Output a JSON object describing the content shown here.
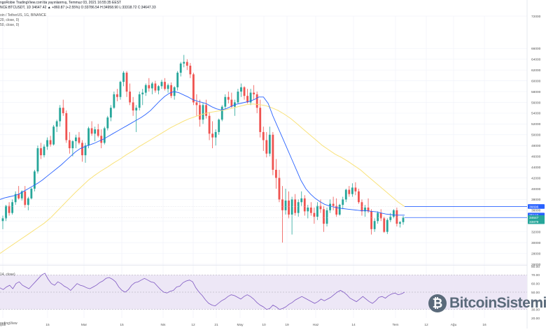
{
  "header": {
    "line1": "ngoRobie TradingView.com'da yayınlanmış, Temmuz 03, 2021 16:55:35 EEST",
    "line2": "NCE:BTCUSDT, 1D 34647.42 ▲ +860.87 (+2.55%) O:33786.54 H:34958.90 L:33318.72 C:34647.33",
    "line3": "oin / TetherUS, 1G, BINANCE",
    "line4": "20, close, 0)",
    "line5": "50, close, 0)"
  },
  "rsi_label": "14, close)",
  "footer": "radingView",
  "watermark": {
    "icon": "bitcoin-sistemi-logo-icon",
    "text": "BitcoinSistemi"
  },
  "colors": {
    "up": "#26a69a",
    "down": "#ef5350",
    "ma20": "#2962ff",
    "ma50": "#f9e27a",
    "rsi_line": "#7e57c2",
    "rsi_band": "#ede7f6",
    "badge_blue": "#2962ff",
    "badge_green": "#26a69a"
  },
  "chart_data": [
    {
      "type": "candlestick",
      "title": "BTCUSDT 1D",
      "x_ticks": [
        "Şub",
        "15",
        "Mar",
        "15",
        "Nis",
        "12",
        "21",
        "May",
        "10",
        "19",
        "Haz",
        "14",
        "Tem",
        "12",
        "Ağu",
        "16"
      ],
      "y_ticks": [
        "72000",
        "66000",
        "64000",
        "62000",
        "60000",
        "58000",
        "56000",
        "54000",
        "52000",
        "50000",
        "48000",
        "46000",
        "44000",
        "42000",
        "40000",
        "38000",
        "36000",
        "34000",
        "32000",
        "30000",
        "28000",
        "26000"
      ],
      "ylim": [
        26000,
        72000
      ],
      "price_badges": [
        "36696",
        "35118",
        "34647",
        "33879"
      ],
      "candles": [
        [
          34000,
          35000,
          32500,
          34500
        ],
        [
          34500,
          37000,
          34000,
          36800
        ],
        [
          36800,
          37500,
          35000,
          35500
        ],
        [
          35500,
          38000,
          35200,
          37500
        ],
        [
          37500,
          39500,
          37000,
          39000
        ],
        [
          39000,
          40500,
          38000,
          38200
        ],
        [
          38200,
          39700,
          37800,
          39500
        ],
        [
          39500,
          40500,
          36500,
          37000
        ],
        [
          37000,
          38500,
          36000,
          38200
        ],
        [
          38200,
          40200,
          38000,
          40000
        ],
        [
          40000,
          43500,
          39500,
          43200
        ],
        [
          43200,
          48000,
          42800,
          47500
        ],
        [
          47500,
          48500,
          45500,
          46200
        ],
        [
          46200,
          48200,
          45800,
          47800
        ],
        [
          47800,
          49500,
          47200,
          49000
        ],
        [
          49000,
          49800,
          47800,
          48200
        ],
        [
          48200,
          51800,
          48000,
          51500
        ],
        [
          51500,
          52800,
          50500,
          52500
        ],
        [
          52500,
          55500,
          51500,
          55000
        ],
        [
          55000,
          56500,
          53500,
          54000
        ],
        [
          54000,
          54500,
          48500,
          49000
        ],
        [
          49000,
          50500,
          46500,
          47500
        ],
        [
          47500,
          49000,
          46000,
          48800
        ],
        [
          48800,
          50000,
          47500,
          49500
        ],
        [
          49500,
          50500,
          48200,
          48500
        ],
        [
          48500,
          49000,
          45000,
          46200
        ],
        [
          46200,
          48500,
          44800,
          48000
        ],
        [
          48000,
          51500,
          47500,
          51200
        ],
        [
          51200,
          52500,
          49800,
          50200
        ],
        [
          50200,
          51500,
          48800,
          51000
        ],
        [
          51000,
          52000,
          49500,
          49800
        ],
        [
          49800,
          51000,
          47500,
          48500
        ],
        [
          48500,
          51500,
          48200,
          51200
        ],
        [
          51200,
          53500,
          50800,
          53200
        ],
        [
          53200,
          55500,
          52500,
          55000
        ],
        [
          55000,
          58000,
          54800,
          57500
        ],
        [
          57500,
          58500,
          56200,
          57000
        ],
        [
          57000,
          60000,
          56500,
          59800
        ],
        [
          59800,
          61800,
          59000,
          61500
        ],
        [
          61500,
          61800,
          57000,
          58000
        ],
        [
          58000,
          59500,
          55500,
          56000
        ],
        [
          56000,
          57000,
          53500,
          54500
        ],
        [
          54500,
          55500,
          50500,
          55000
        ],
        [
          55000,
          58000,
          54500,
          57500
        ],
        [
          57500,
          58500,
          55500,
          57800
        ],
        [
          57800,
          59500,
          57200,
          59200
        ],
        [
          59200,
          60500,
          58000,
          58600
        ],
        [
          58600,
          59800,
          57500,
          59500
        ],
        [
          59500,
          60000,
          57800,
          58200
        ],
        [
          58200,
          59200,
          57500,
          59000
        ],
        [
          59000,
          60200,
          58500,
          59800
        ],
        [
          59800,
          60500,
          58200,
          58500
        ],
        [
          58500,
          59500,
          57800,
          59200
        ],
        [
          59200,
          59700,
          56800,
          57200
        ],
        [
          57200,
          59000,
          56500,
          58800
        ],
        [
          58800,
          61800,
          58200,
          61500
        ],
        [
          61500,
          63500,
          60800,
          63200
        ],
        [
          63200,
          64800,
          62500,
          63500
        ],
        [
          63500,
          64000,
          62000,
          62800
        ],
        [
          62800,
          63300,
          60500,
          61200
        ],
        [
          61200,
          61500,
          55500,
          56000
        ],
        [
          56000,
          57500,
          53500,
          55500
        ],
        [
          55500,
          56500,
          51500,
          52800
        ],
        [
          52800,
          56000,
          52000,
          55500
        ],
        [
          55500,
          56500,
          53000,
          53500
        ],
        [
          53500,
          54200,
          49000,
          50200
        ],
        [
          50200,
          52500,
          47500,
          49500
        ],
        [
          49500,
          51000,
          48000,
          50500
        ],
        [
          50500,
          53000,
          50000,
          52800
        ],
        [
          52800,
          55500,
          52500,
          55200
        ],
        [
          55200,
          57500,
          54800,
          57000
        ],
        [
          57000,
          58000,
          55800,
          56500
        ],
        [
          56500,
          57800,
          55000,
          55200
        ],
        [
          55200,
          56500,
          53500,
          56000
        ],
        [
          56000,
          58500,
          55800,
          58000
        ],
        [
          58000,
          59500,
          57000,
          58800
        ],
        [
          58800,
          59000,
          56500,
          57200
        ],
        [
          57200,
          58500,
          55800,
          56000
        ],
        [
          56000,
          58500,
          55500,
          57800
        ],
        [
          57800,
          59200,
          56500,
          57500
        ],
        [
          57500,
          58000,
          54000,
          55000
        ],
        [
          55000,
          56500,
          49500,
          50500
        ],
        [
          50500,
          51500,
          47000,
          49000
        ],
        [
          49000,
          50500,
          45800,
          46500
        ],
        [
          46500,
          51500,
          46000,
          50000
        ],
        [
          50000,
          50500,
          42500,
          43500
        ],
        [
          43500,
          45500,
          40000,
          42000
        ],
        [
          42000,
          43500,
          37500,
          38000
        ],
        [
          38000,
          40500,
          30000,
          36000
        ],
        [
          36000,
          40000,
          35200,
          37800
        ],
        [
          37800,
          39500,
          34500,
          35200
        ],
        [
          35200,
          38500,
          31500,
          38000
        ],
        [
          38000,
          39000,
          35000,
          35500
        ],
        [
          35500,
          38000,
          34800,
          37500
        ],
        [
          37500,
          39500,
          36800,
          38200
        ],
        [
          38200,
          38800,
          35000,
          35800
        ],
        [
          35800,
          37000,
          34500,
          36500
        ],
        [
          36500,
          37500,
          35000,
          35500
        ],
        [
          35500,
          36500,
          33500,
          34800
        ],
        [
          34800,
          37500,
          34200,
          36800
        ],
        [
          36800,
          38000,
          35500,
          36200
        ],
        [
          36200,
          36800,
          32000,
          33500
        ],
        [
          33500,
          36500,
          33000,
          36000
        ],
        [
          36000,
          38000,
          35500,
          37200
        ],
        [
          37200,
          38500,
          36000,
          36800
        ],
        [
          36800,
          38200,
          34800,
          35200
        ],
        [
          35200,
          37200,
          35000,
          37000
        ],
        [
          37000,
          38500,
          36200,
          38000
        ],
        [
          38000,
          40000,
          37500,
          39800
        ],
        [
          39800,
          40500,
          38500,
          39000
        ],
        [
          39000,
          41000,
          38500,
          40200
        ],
        [
          40200,
          41200,
          38800,
          39500
        ],
        [
          39500,
          40000,
          37200,
          37500
        ],
        [
          37500,
          38000,
          35000,
          35800
        ],
        [
          35800,
          37000,
          34800,
          36500
        ],
        [
          36500,
          38200,
          35500,
          35800
        ],
        [
          35800,
          36200,
          31500,
          32500
        ],
        [
          32500,
          34500,
          32000,
          34000
        ],
        [
          34000,
          35800,
          33500,
          35500
        ],
        [
          35500,
          36200,
          34000,
          34500
        ],
        [
          34500,
          34800,
          31800,
          32000
        ],
        [
          32000,
          34500,
          31600,
          34200
        ],
        [
          34200,
          35500,
          33800,
          34800
        ],
        [
          34800,
          36200,
          34500,
          36000
        ],
        [
          36000,
          36500,
          33000,
          33500
        ],
        [
          33500,
          34000,
          32800,
          33800
        ],
        [
          33800,
          34958,
          33318,
          34647
        ]
      ],
      "ma20": [
        38000,
        38300,
        38500,
        38700,
        39000,
        39500,
        40000,
        40500,
        41000,
        41600,
        42300,
        43000,
        43700,
        44400,
        45200,
        46000,
        46800,
        47400,
        47800,
        48100,
        48400,
        48800,
        49200,
        49700,
        50200,
        50700,
        51200,
        51700,
        52200,
        52700,
        53200,
        53800,
        54500,
        55400,
        56300,
        57100,
        57700,
        58000,
        57800,
        57400,
        57000,
        56500,
        56200,
        56000,
        55700,
        55200,
        54800,
        54600,
        54800,
        55200,
        55600,
        55800,
        56000,
        56200,
        56500,
        57000,
        57000,
        55800,
        53500,
        51500,
        49500,
        47500,
        45500,
        43500,
        41500,
        40000,
        39000,
        38200,
        37600,
        37100,
        36800,
        36600,
        36400,
        36300,
        36200,
        36100,
        36000,
        35900,
        35900,
        35800,
        35700,
        35500,
        35300,
        35200,
        35100,
        35100,
        35100
      ],
      "ma50": [
        28000,
        28800,
        29600,
        30400,
        31200,
        32000,
        32800,
        33600,
        34600,
        35800,
        37000,
        38200,
        39400,
        40500,
        41600,
        42500,
        43300,
        44000,
        44800,
        45500,
        46300,
        47000,
        47800,
        48500,
        49200,
        49900,
        50600,
        51300,
        51900,
        52500,
        53000,
        53400,
        53800,
        54100,
        54300,
        54500,
        54700,
        55000,
        55300,
        55600,
        55700,
        55600,
        55400,
        55000,
        54500,
        53800,
        53000,
        52000,
        51000,
        50000,
        49000,
        48000,
        47200,
        46400,
        45800,
        45100,
        44300,
        43500,
        42500,
        41500,
        40500,
        39500,
        38500,
        37500,
        36700
      ],
      "price_lines": [
        36696,
        34647
      ]
    },
    {
      "type": "line",
      "title": "RSI 14",
      "y_ticks": [
        "80.00",
        "70.00",
        "60.00",
        "50.00",
        "40.00",
        "30.00",
        "20.00"
      ],
      "ylim": [
        20,
        80
      ],
      "band": [
        30,
        70
      ],
      "values": [
        55,
        53,
        56,
        58,
        54,
        60,
        62,
        58,
        56,
        54,
        58,
        62,
        66,
        70,
        72,
        65,
        60,
        58,
        62,
        60,
        57,
        55,
        52,
        56,
        60,
        58,
        57,
        55,
        54,
        56,
        58,
        61,
        63,
        66,
        67,
        65,
        62,
        56,
        52,
        50,
        53,
        58,
        61,
        62,
        64,
        66,
        64,
        62,
        61,
        57,
        53,
        50,
        49,
        51,
        52,
        56,
        57,
        61,
        63,
        64,
        62,
        55,
        50,
        46,
        41,
        37,
        35,
        34,
        37,
        40,
        42,
        45,
        47,
        46,
        44,
        42,
        45,
        47,
        45,
        42,
        38,
        35,
        33,
        30,
        31,
        35,
        33,
        30,
        31,
        33,
        36,
        38,
        41,
        43,
        45,
        43,
        41,
        39,
        37,
        39,
        42,
        40,
        42,
        44,
        47,
        50,
        52,
        50,
        47,
        43,
        41,
        39,
        42,
        45,
        42,
        39,
        37,
        40,
        44,
        45,
        43,
        46,
        48,
        49,
        47,
        48,
        50
      ]
    }
  ]
}
